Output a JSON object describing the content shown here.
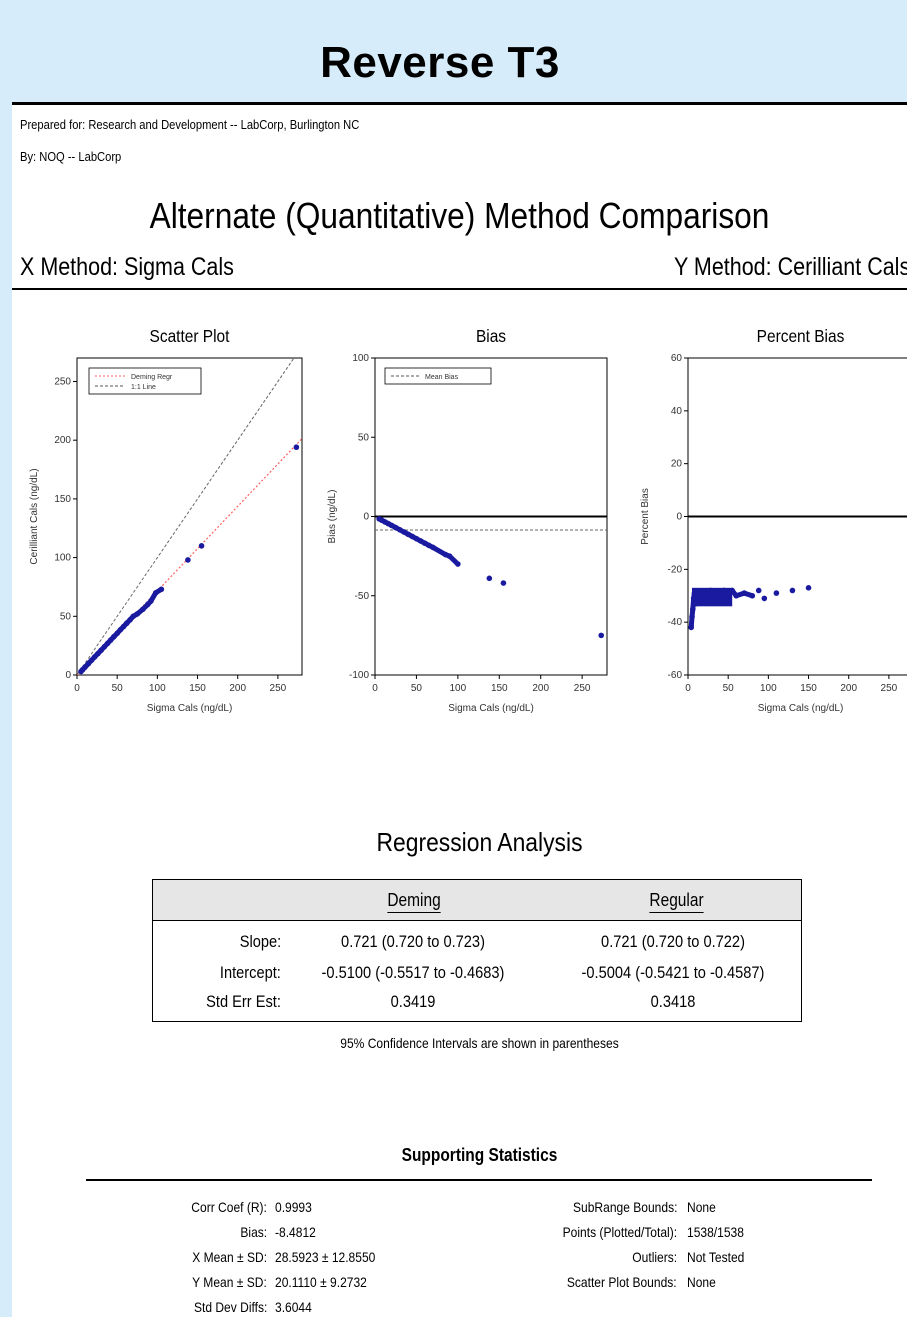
{
  "slide_title": "Reverse T3",
  "header": {
    "prepared_for": "Prepared for: Research and Development -- LabCorp, Burlington NC",
    "by": "By: NOQ -- LabCorp"
  },
  "main_title": "Alternate (Quantitative) Method Comparison",
  "methods": {
    "x": "X Method:   Sigma Cals",
    "y": "Y Method:   Cerilliant Cals"
  },
  "chart_data": [
    {
      "type": "scatter",
      "title": "Scatter Plot",
      "xlabel": "Sigma Cals (ng/dL)",
      "ylabel": "Cerilliant Cals (ng/dL)",
      "xlim": [
        0,
        280
      ],
      "ylim": [
        0,
        270
      ],
      "xticks": [
        0,
        50,
        100,
        150,
        200,
        250
      ],
      "yticks": [
        0,
        50,
        100,
        150,
        200,
        250
      ],
      "legend": [
        {
          "name": "Deming Regr",
          "color": "#ff6060",
          "style": "dotted"
        },
        {
          "name": "1:1 Line",
          "color": "#555555",
          "style": "dashed"
        }
      ],
      "lines": [
        {
          "name": "Deming Regr",
          "slope": 0.721,
          "intercept": -0.51
        },
        {
          "name": "1:1 Line",
          "slope": 1,
          "intercept": 0
        }
      ],
      "points": [
        [
          5,
          3
        ],
        [
          7,
          4.5
        ],
        [
          10,
          6.7
        ],
        [
          14,
          9.6
        ],
        [
          18,
          12.5
        ],
        [
          22,
          15.4
        ],
        [
          26,
          18.2
        ],
        [
          30,
          21.1
        ],
        [
          34,
          24
        ],
        [
          38,
          26.9
        ],
        [
          42,
          29.8
        ],
        [
          46,
          32.7
        ],
        [
          50,
          35.5
        ],
        [
          54,
          38.5
        ],
        [
          58,
          41.3
        ],
        [
          62,
          44.2
        ],
        [
          66,
          47
        ],
        [
          70,
          50
        ],
        [
          75,
          52
        ],
        [
          82,
          56
        ],
        [
          88,
          60
        ],
        [
          92,
          63
        ],
        [
          98,
          70
        ],
        [
          105,
          73
        ],
        [
          138,
          98
        ],
        [
          155,
          110
        ],
        [
          273,
          194
        ]
      ],
      "point_color": "#1a1aa0"
    },
    {
      "type": "scatter",
      "title": "Bias",
      "xlabel": "Sigma Cals (ng/dL)",
      "ylabel": "Bias (ng/dL)",
      "xlim": [
        0,
        280
      ],
      "ylim": [
        -100,
        100
      ],
      "xticks": [
        0,
        50,
        100,
        150,
        200,
        250
      ],
      "yticks": [
        -100,
        -50,
        0,
        50,
        100
      ],
      "legend": [
        {
          "name": "Mean Bias",
          "color": "#555555",
          "style": "dashed"
        }
      ],
      "mean_bias": -8.4812,
      "points": [
        [
          5,
          -1.5
        ],
        [
          8,
          -2.3
        ],
        [
          12,
          -3.4
        ],
        [
          16,
          -4.5
        ],
        [
          20,
          -5.6
        ],
        [
          25,
          -7
        ],
        [
          30,
          -8.4
        ],
        [
          35,
          -9.8
        ],
        [
          40,
          -11.2
        ],
        [
          45,
          -12.6
        ],
        [
          50,
          -14
        ],
        [
          55,
          -15.4
        ],
        [
          60,
          -16.8
        ],
        [
          65,
          -18.2
        ],
        [
          70,
          -19.5
        ],
        [
          85,
          -24
        ],
        [
          90,
          -25
        ],
        [
          100,
          -30
        ],
        [
          138,
          -39
        ],
        [
          155,
          -42
        ],
        [
          273,
          -75
        ]
      ],
      "point_color": "#1a1aa0"
    },
    {
      "type": "scatter",
      "title": "Percent Bias",
      "xlabel": "Sigma Cals (ng/dL)",
      "ylabel": "Percent Bias",
      "xlim": [
        0,
        280
      ],
      "ylim": [
        -60,
        60
      ],
      "xticks": [
        0,
        50,
        100,
        150,
        200,
        250
      ],
      "yticks": [
        -60,
        -40,
        -20,
        0,
        20,
        40,
        60
      ],
      "points": [
        [
          4,
          -42
        ],
        [
          5,
          -38
        ],
        [
          6,
          -35
        ],
        [
          7,
          -31
        ],
        [
          8,
          -29
        ],
        [
          10,
          -33
        ],
        [
          12,
          -30
        ],
        [
          15,
          -31
        ],
        [
          18,
          -29
        ],
        [
          20,
          -32
        ],
        [
          25,
          -30
        ],
        [
          28,
          -28
        ],
        [
          32,
          -31
        ],
        [
          35,
          -29
        ],
        [
          40,
          -30
        ],
        [
          45,
          -28
        ],
        [
          50,
          -29
        ],
        [
          55,
          -28
        ],
        [
          60,
          -30
        ],
        [
          70,
          -29
        ],
        [
          80,
          -30
        ],
        [
          88,
          -28
        ],
        [
          95,
          -31
        ],
        [
          110,
          -29
        ],
        [
          130,
          -28
        ],
        [
          150,
          -27
        ]
      ],
      "point_color": "#1a1aa0"
    }
  ],
  "regression": {
    "title": "Regression Analysis",
    "col_deming": "Deming",
    "col_regular": "Regular",
    "rows": [
      {
        "label": "Slope:",
        "deming": "0.721 (0.720 to 0.723)",
        "regular": "0.721 (0.720 to 0.722)"
      },
      {
        "label": "Intercept:",
        "deming": "-0.5100 (-0.5517 to -0.4683)",
        "regular": "-0.5004 (-0.5421 to -0.4587)"
      },
      {
        "label": "Std Err Est:",
        "deming": "0.3419",
        "regular": "0.3418"
      }
    ],
    "note": "95% Confidence Intervals are shown in parentheses"
  },
  "supporting": {
    "title": "Supporting Statistics",
    "left": [
      {
        "label": "Corr Coef (R):",
        "value": "0.9993"
      },
      {
        "label": "Bias:",
        "value": "-8.4812"
      },
      {
        "label": "X Mean ± SD:",
        "value": "28.5923 ± 12.8550"
      },
      {
        "label": "Y Mean ± SD:",
        "value": "20.1110 ± 9.2732"
      },
      {
        "label": "Std Dev Diffs:",
        "value": "3.6044"
      }
    ],
    "right": [
      {
        "label": "SubRange Bounds:",
        "value": "None"
      },
      {
        "label": "Points (Plotted/Total):",
        "value": "1538/1538"
      },
      {
        "label": "Outliers:",
        "value": "Not Tested"
      },
      {
        "label": "Scatter Plot Bounds:",
        "value": "None"
      }
    ]
  }
}
